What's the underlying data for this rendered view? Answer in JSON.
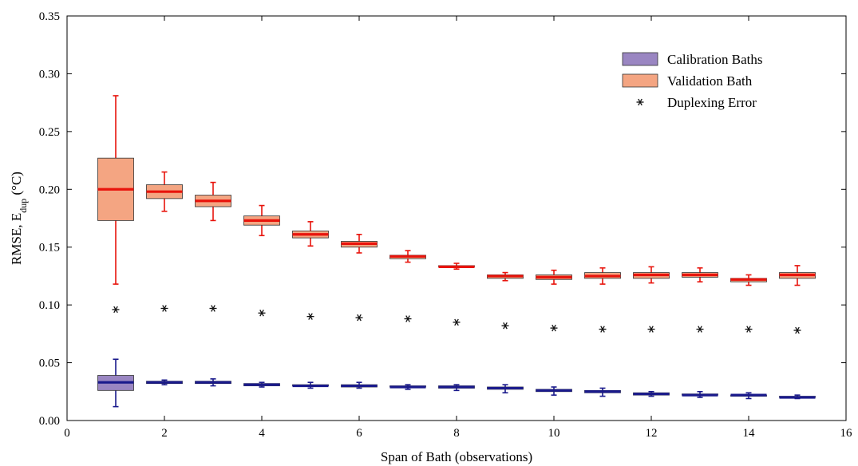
{
  "chart_data": {
    "type": "box",
    "xlabel": "Span of Bath (observations)",
    "ylabel_main": "RMSE,  E",
    "ylabel_sub": "dup",
    "ylabel_tail": " (°C)",
    "xlim": [
      0,
      16
    ],
    "ylim": [
      0.0,
      0.35
    ],
    "xticks": [
      0,
      2,
      4,
      6,
      8,
      10,
      12,
      14,
      16
    ],
    "xtick_labels": [
      "0",
      "2",
      "4",
      "6",
      "8",
      "10",
      "12",
      "14",
      "16"
    ],
    "yticks": [
      0.0,
      0.05,
      0.1,
      0.15,
      0.2,
      0.25,
      0.3,
      0.35
    ],
    "ytick_labels": [
      "0.00",
      "0.05",
      "0.10",
      "0.15",
      "0.20",
      "0.25",
      "0.30",
      "0.35"
    ],
    "legend_position": "top-right",
    "colors": {
      "validation_fill": "#f4a582",
      "validation_line": "#e8140c",
      "calibration_fill": "#9a86c2",
      "calibration_line": "#1a1a8c",
      "duplex_marker": "#111111"
    },
    "legend": [
      {
        "label": "Calibration Baths",
        "kind": "calibration"
      },
      {
        "label": "Validation Bath",
        "kind": "validation"
      },
      {
        "label": "Duplexing Error",
        "kind": "marker"
      }
    ],
    "series": [
      {
        "name": "Validation Bath",
        "kind": "validation",
        "boxes": [
          {
            "x": 1,
            "min": 0.118,
            "q1": 0.173,
            "median": 0.2,
            "q3": 0.227,
            "max": 0.281
          },
          {
            "x": 2,
            "min": 0.181,
            "q1": 0.192,
            "median": 0.198,
            "q3": 0.204,
            "max": 0.215
          },
          {
            "x": 3,
            "min": 0.173,
            "q1": 0.185,
            "median": 0.19,
            "q3": 0.195,
            "max": 0.206
          },
          {
            "x": 4,
            "min": 0.16,
            "q1": 0.169,
            "median": 0.173,
            "q3": 0.177,
            "max": 0.186
          },
          {
            "x": 5,
            "min": 0.151,
            "q1": 0.158,
            "median": 0.161,
            "q3": 0.164,
            "max": 0.172
          },
          {
            "x": 6,
            "min": 0.145,
            "q1": 0.15,
            "median": 0.153,
            "q3": 0.155,
            "max": 0.161
          },
          {
            "x": 7,
            "min": 0.137,
            "q1": 0.14,
            "median": 0.142,
            "q3": 0.143,
            "max": 0.147
          },
          {
            "x": 8,
            "min": 0.131,
            "q1": 0.133,
            "median": 0.133,
            "q3": 0.134,
            "max": 0.136
          },
          {
            "x": 9,
            "min": 0.121,
            "q1": 0.123,
            "median": 0.125,
            "q3": 0.126,
            "max": 0.128
          },
          {
            "x": 10,
            "min": 0.118,
            "q1": 0.122,
            "median": 0.124,
            "q3": 0.126,
            "max": 0.13
          },
          {
            "x": 11,
            "min": 0.118,
            "q1": 0.123,
            "median": 0.125,
            "q3": 0.128,
            "max": 0.132
          },
          {
            "x": 12,
            "min": 0.119,
            "q1": 0.123,
            "median": 0.126,
            "q3": 0.128,
            "max": 0.133
          },
          {
            "x": 13,
            "min": 0.12,
            "q1": 0.124,
            "median": 0.126,
            "q3": 0.128,
            "max": 0.132
          },
          {
            "x": 14,
            "min": 0.117,
            "q1": 0.12,
            "median": 0.122,
            "q3": 0.123,
            "max": 0.126
          },
          {
            "x": 15,
            "min": 0.117,
            "q1": 0.123,
            "median": 0.126,
            "q3": 0.128,
            "max": 0.134
          }
        ]
      },
      {
        "name": "Calibration Baths",
        "kind": "calibration",
        "boxes": [
          {
            "x": 1,
            "min": 0.012,
            "q1": 0.026,
            "median": 0.033,
            "q3": 0.039,
            "max": 0.053
          },
          {
            "x": 2,
            "min": 0.031,
            "q1": 0.032,
            "median": 0.033,
            "q3": 0.034,
            "max": 0.035
          },
          {
            "x": 3,
            "min": 0.03,
            "q1": 0.032,
            "median": 0.033,
            "q3": 0.034,
            "max": 0.036
          },
          {
            "x": 4,
            "min": 0.029,
            "q1": 0.03,
            "median": 0.031,
            "q3": 0.032,
            "max": 0.033
          },
          {
            "x": 5,
            "min": 0.028,
            "q1": 0.03,
            "median": 0.03,
            "q3": 0.031,
            "max": 0.033
          },
          {
            "x": 6,
            "min": 0.028,
            "q1": 0.029,
            "median": 0.03,
            "q3": 0.031,
            "max": 0.033
          },
          {
            "x": 7,
            "min": 0.027,
            "q1": 0.029,
            "median": 0.029,
            "q3": 0.03,
            "max": 0.031
          },
          {
            "x": 8,
            "min": 0.026,
            "q1": 0.028,
            "median": 0.029,
            "q3": 0.03,
            "max": 0.031
          },
          {
            "x": 9,
            "min": 0.024,
            "q1": 0.027,
            "median": 0.028,
            "q3": 0.029,
            "max": 0.031
          },
          {
            "x": 10,
            "min": 0.022,
            "q1": 0.025,
            "median": 0.026,
            "q3": 0.027,
            "max": 0.029
          },
          {
            "x": 11,
            "min": 0.021,
            "q1": 0.024,
            "median": 0.025,
            "q3": 0.026,
            "max": 0.028
          },
          {
            "x": 12,
            "min": 0.021,
            "q1": 0.022,
            "median": 0.023,
            "q3": 0.024,
            "max": 0.025
          },
          {
            "x": 13,
            "min": 0.02,
            "q1": 0.022,
            "median": 0.022,
            "q3": 0.023,
            "max": 0.025
          },
          {
            "x": 14,
            "min": 0.019,
            "q1": 0.021,
            "median": 0.022,
            "q3": 0.022,
            "max": 0.024
          },
          {
            "x": 15,
            "min": 0.019,
            "q1": 0.02,
            "median": 0.02,
            "q3": 0.021,
            "max": 0.022
          }
        ]
      },
      {
        "name": "Duplexing Error",
        "kind": "marker",
        "points": [
          {
            "x": 1,
            "y": 0.096
          },
          {
            "x": 2,
            "y": 0.097
          },
          {
            "x": 3,
            "y": 0.097
          },
          {
            "x": 4,
            "y": 0.093
          },
          {
            "x": 5,
            "y": 0.09
          },
          {
            "x": 6,
            "y": 0.089
          },
          {
            "x": 7,
            "y": 0.088
          },
          {
            "x": 8,
            "y": 0.085
          },
          {
            "x": 9,
            "y": 0.082
          },
          {
            "x": 10,
            "y": 0.08
          },
          {
            "x": 11,
            "y": 0.079
          },
          {
            "x": 12,
            "y": 0.079
          },
          {
            "x": 13,
            "y": 0.079
          },
          {
            "x": 14,
            "y": 0.079
          },
          {
            "x": 15,
            "y": 0.078
          }
        ]
      }
    ]
  }
}
